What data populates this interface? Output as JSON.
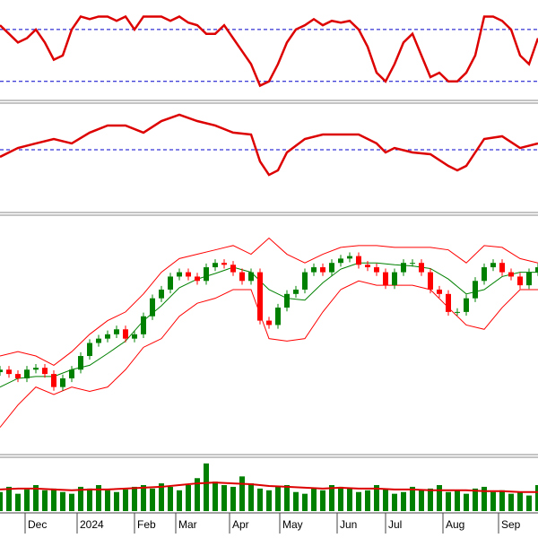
{
  "chart_data": [
    {
      "type": "line",
      "xlim": [
        0,
        60
      ],
      "ylim": [
        16.7,
        90
      ],
      "hlines": [
        70,
        30
      ],
      "hline_color": "#0000cc",
      "series": [
        {
          "color": "#dd0000",
          "x": [
            0,
            1,
            2,
            3,
            4,
            5,
            6,
            7,
            8,
            9,
            10,
            11,
            12,
            13,
            14,
            15,
            16,
            17,
            18,
            19,
            20,
            21,
            22,
            23,
            24,
            25,
            26,
            27,
            28,
            29,
            30,
            31,
            32,
            33,
            34,
            35,
            36,
            37,
            38,
            39,
            40,
            41,
            42,
            43,
            44,
            45,
            46,
            47,
            48,
            49,
            50,
            51,
            52,
            53,
            54,
            55,
            56,
            57,
            58,
            59,
            60
          ],
          "values": [
            73.3,
            66.7,
            60,
            63.3,
            70,
            60,
            46.7,
            50,
            70,
            80,
            78,
            80,
            80,
            76.7,
            80,
            70,
            80,
            80,
            80,
            76.7,
            80,
            75.3,
            73.3,
            66.7,
            66.7,
            73.3,
            63.3,
            53.3,
            43.3,
            26.7,
            30,
            43.3,
            60,
            70,
            73.3,
            78,
            73.3,
            76.7,
            75.3,
            76.7,
            70,
            56.7,
            36.7,
            30,
            43.3,
            60,
            66.7,
            50,
            33.3,
            36.7,
            30,
            30,
            36.7,
            50,
            80,
            80,
            76.7,
            70,
            50,
            43.3,
            63.3
          ]
        }
      ]
    },
    {
      "type": "line",
      "xlim": [
        0,
        60
      ],
      "ylim": [
        4.7,
        83.3
      ],
      "hlines": [
        50
      ],
      "hline_color": "#0000cc",
      "series": [
        {
          "color": "#dd0000",
          "x": [
            0,
            2,
            4,
            6,
            8,
            10,
            12,
            14,
            16,
            18,
            20,
            22,
            24,
            26,
            28,
            29,
            30,
            31,
            32,
            34,
            36,
            38,
            40,
            42,
            43,
            44,
            46,
            48,
            50,
            51,
            52,
            54,
            56,
            58,
            60
          ],
          "values": [
            44.7,
            51.3,
            54.7,
            58,
            54.7,
            62.7,
            68,
            68,
            62.7,
            71.3,
            76,
            71.3,
            68,
            62.7,
            61.3,
            41.3,
            31.3,
            34.7,
            48,
            58,
            61.3,
            61.3,
            61.3,
            54.7,
            48,
            51.3,
            48,
            46.7,
            38,
            34.7,
            38,
            58,
            60,
            51.3,
            54.7
          ]
        }
      ]
    },
    {
      "type": "candlestick",
      "xlim": [
        0,
        60
      ],
      "ylim": [
        980,
        1360
      ],
      "up_color": "#008000",
      "down_color": "#ff0000",
      "x": [
        0,
        1,
        2,
        3,
        4,
        5,
        6,
        7,
        8,
        9,
        10,
        11,
        12,
        13,
        14,
        15,
        16,
        17,
        18,
        19,
        20,
        21,
        22,
        23,
        24,
        25,
        26,
        27,
        28,
        29,
        30,
        31,
        32,
        33,
        34,
        35,
        36,
        37,
        38,
        39,
        40,
        41,
        42,
        43,
        44,
        45,
        46,
        47,
        48,
        49,
        50,
        51,
        52,
        53,
        54,
        55,
        56,
        57,
        58,
        59,
        60
      ],
      "open": [
        1110,
        1114,
        1107,
        1100,
        1114,
        1117,
        1107,
        1086,
        1100,
        1114,
        1136,
        1157,
        1164,
        1171,
        1179,
        1164,
        1171,
        1200,
        1229,
        1243,
        1264,
        1271,
        1264,
        1257,
        1279,
        1286,
        1283,
        1271,
        1257,
        1271,
        1193,
        1186,
        1214,
        1236,
        1243,
        1271,
        1279,
        1271,
        1286,
        1293,
        1297,
        1283,
        1279,
        1271,
        1250,
        1271,
        1286,
        1286,
        1271,
        1243,
        1236,
        1207,
        1207,
        1229,
        1257,
        1279,
        1286,
        1271,
        1264,
        1250,
        1271
      ],
      "high": [
        1120,
        1120,
        1113,
        1120,
        1123,
        1123,
        1113,
        1106,
        1120,
        1142,
        1163,
        1170,
        1177,
        1185,
        1185,
        1177,
        1206,
        1235,
        1249,
        1270,
        1277,
        1277,
        1270,
        1285,
        1292,
        1292,
        1289,
        1277,
        1277,
        1277,
        1199,
        1220,
        1242,
        1249,
        1277,
        1285,
        1285,
        1292,
        1299,
        1303,
        1303,
        1289,
        1285,
        1277,
        1277,
        1292,
        1292,
        1292,
        1277,
        1249,
        1242,
        1213,
        1235,
        1263,
        1285,
        1292,
        1292,
        1277,
        1270,
        1277,
        1285
      ],
      "low": [
        1104,
        1101,
        1094,
        1094,
        1108,
        1101,
        1080,
        1080,
        1094,
        1108,
        1130,
        1151,
        1158,
        1165,
        1158,
        1158,
        1165,
        1194,
        1223,
        1237,
        1258,
        1258,
        1251,
        1251,
        1273,
        1277,
        1265,
        1251,
        1251,
        1187,
        1180,
        1180,
        1208,
        1230,
        1237,
        1265,
        1265,
        1265,
        1280,
        1287,
        1277,
        1273,
        1265,
        1244,
        1244,
        1265,
        1280,
        1265,
        1237,
        1230,
        1201,
        1201,
        1201,
        1223,
        1251,
        1273,
        1265,
        1258,
        1244,
        1244,
        1265
      ],
      "close": [
        1114,
        1107,
        1100,
        1114,
        1117,
        1107,
        1086,
        1100,
        1114,
        1136,
        1157,
        1164,
        1171,
        1179,
        1164,
        1171,
        1200,
        1229,
        1243,
        1264,
        1271,
        1264,
        1257,
        1279,
        1286,
        1283,
        1271,
        1257,
        1271,
        1193,
        1186,
        1214,
        1236,
        1243,
        1271,
        1279,
        1271,
        1286,
        1293,
        1297,
        1283,
        1279,
        1271,
        1250,
        1271,
        1286,
        1286,
        1271,
        1243,
        1236,
        1207,
        1207,
        1229,
        1257,
        1279,
        1286,
        1271,
        1264,
        1250,
        1271,
        1279
      ],
      "series": [
        {
          "color": "#ff0000",
          "x": [
            0,
            2,
            4,
            6,
            8,
            10,
            12,
            14,
            16,
            18,
            20,
            22,
            24,
            26,
            28,
            30,
            32,
            34,
            36,
            38,
            40,
            42,
            44,
            46,
            48,
            50,
            52,
            54,
            56,
            58,
            60
          ],
          "values": [
            1136,
            1143,
            1136,
            1121,
            1143,
            1171,
            1193,
            1207,
            1236,
            1271,
            1293,
            1300,
            1307,
            1314,
            1300,
            1326,
            1300,
            1286,
            1300,
            1311,
            1314,
            1314,
            1311,
            1311,
            1311,
            1307,
            1286,
            1314,
            1311,
            1293,
            1286
          ]
        },
        {
          "color": "#ff0000",
          "x": [
            0,
            2,
            4,
            6,
            8,
            10,
            12,
            14,
            16,
            18,
            20,
            22,
            24,
            26,
            28,
            30,
            32,
            34,
            36,
            38,
            40,
            42,
            44,
            46,
            48,
            50,
            52,
            54,
            56,
            58,
            60
          ],
          "values": [
            1021,
            1057,
            1086,
            1074,
            1086,
            1079,
            1086,
            1114,
            1150,
            1164,
            1200,
            1221,
            1229,
            1243,
            1243,
            1164,
            1160,
            1164,
            1207,
            1243,
            1257,
            1250,
            1250,
            1250,
            1243,
            1214,
            1186,
            1179,
            1214,
            1243,
            1243
          ]
        },
        {
          "color": "#008000",
          "x": [
            0,
            2,
            4,
            6,
            8,
            10,
            12,
            14,
            16,
            18,
            20,
            22,
            24,
            26,
            28,
            30,
            32,
            34,
            36,
            38,
            40,
            42,
            44,
            46,
            48,
            50,
            52,
            54,
            56,
            58,
            60
          ],
          "values": [
            1086,
            1100,
            1103,
            1103,
            1114,
            1121,
            1140,
            1160,
            1193,
            1217,
            1246,
            1260,
            1269,
            1279,
            1271,
            1243,
            1229,
            1226,
            1254,
            1276,
            1286,
            1286,
            1283,
            1281,
            1277,
            1260,
            1236,
            1243,
            1264,
            1271,
            1271
          ]
        }
      ]
    },
    {
      "type": "bar",
      "xlim": [
        0,
        60
      ],
      "ylim": [
        0,
        60
      ],
      "color": "#008000",
      "x": [
        0,
        1,
        2,
        3,
        4,
        5,
        6,
        7,
        8,
        9,
        10,
        11,
        12,
        13,
        14,
        15,
        16,
        17,
        18,
        19,
        20,
        21,
        22,
        23,
        24,
        25,
        26,
        27,
        28,
        29,
        30,
        31,
        32,
        33,
        34,
        35,
        36,
        37,
        38,
        39,
        40,
        41,
        42,
        43,
        44,
        45,
        46,
        47,
        48,
        49,
        50,
        51,
        52,
        53,
        54,
        55,
        56,
        57,
        58,
        59,
        60
      ],
      "values": [
        22,
        28,
        20,
        25,
        30,
        24,
        26,
        22,
        20,
        28,
        26,
        30,
        24,
        22,
        25,
        28,
        30,
        26,
        32,
        28,
        24,
        30,
        38,
        55,
        34,
        30,
        28,
        40,
        32,
        26,
        24,
        28,
        30,
        22,
        20,
        26,
        24,
        30,
        28,
        26,
        22,
        24,
        30,
        26,
        20,
        22,
        28,
        24,
        26,
        30,
        22,
        24,
        20,
        26,
        28,
        22,
        24,
        20,
        22,
        18,
        30
      ],
      "series": [
        {
          "color": "#dd0000",
          "x": [
            0,
            2,
            4,
            6,
            8,
            10,
            12,
            14,
            16,
            18,
            20,
            22,
            24,
            26,
            28,
            30,
            32,
            34,
            36,
            38,
            40,
            42,
            44,
            46,
            48,
            50,
            52,
            54,
            56,
            58,
            60
          ],
          "values": [
            25,
            26,
            26,
            25,
            24,
            25,
            25,
            26,
            27,
            28,
            30,
            32,
            33,
            32,
            31,
            29,
            28,
            27,
            26,
            27,
            26,
            26,
            25,
            25,
            24,
            24,
            24,
            23,
            23,
            22,
            22
          ]
        }
      ],
      "xticks": [
        {
          "value": 2.8,
          "label": "Dec"
        },
        {
          "value": 8.6,
          "label": "2024"
        },
        {
          "value": 15,
          "label": "Feb"
        },
        {
          "value": 19.6,
          "label": "Mar"
        },
        {
          "value": 25.6,
          "label": "Apr"
        },
        {
          "value": 31.2,
          "label": "May"
        },
        {
          "value": 37.6,
          "label": "Jun"
        },
        {
          "value": 43,
          "label": "Jul"
        },
        {
          "value": 49.4,
          "label": "Aug"
        },
        {
          "value": 55.6,
          "label": "Sep"
        }
      ]
    }
  ]
}
